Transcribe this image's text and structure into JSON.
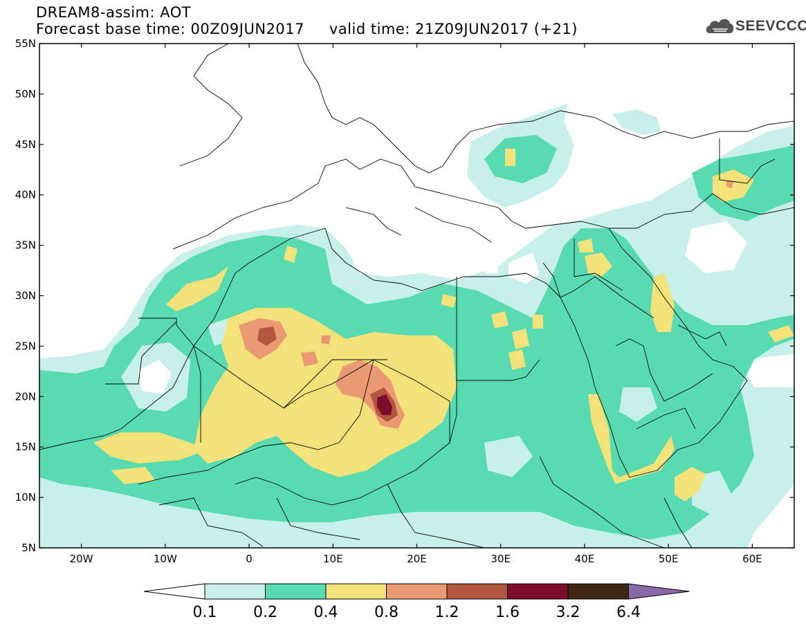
{
  "title": {
    "line1": "DREAM8-assim: AOT",
    "line2": "Forecast base time: 00Z09JUN2017     valid time: 21Z09JUN2017 (+21)"
  },
  "logo": {
    "text": "SEEVCCC",
    "icon": "cloud-icon"
  },
  "map": {
    "product": "Aerosol optical thickness forecast",
    "lon_range": [
      -25,
      65
    ],
    "lat_range": [
      5,
      55
    ],
    "lat_labels": [
      "55N",
      "50N",
      "45N",
      "40N",
      "35N",
      "30N",
      "25N",
      "20N",
      "15N",
      "10N",
      "5N"
    ],
    "lat_values": [
      55,
      50,
      45,
      40,
      35,
      30,
      25,
      20,
      15,
      10,
      5
    ],
    "lon_labels": [
      "20W",
      "10W",
      "0",
      "10E",
      "20E",
      "30E",
      "40E",
      "50E",
      "60E"
    ],
    "lon_values": [
      -20,
      -10,
      0,
      10,
      20,
      30,
      40,
      50,
      60
    ]
  },
  "colorbar": {
    "labels": [
      "0.1",
      "0.2",
      "0.4",
      "0.8",
      "1.2",
      "1.6",
      "3.2",
      "6.4"
    ],
    "colors": [
      "#c8f0ea",
      "#58dbb0",
      "#f3e27a",
      "#e99a73",
      "#b3563f",
      "#7e0c2c",
      "#3f2713",
      "#8a6aa6"
    ],
    "under_color": "#ffffff"
  }
}
